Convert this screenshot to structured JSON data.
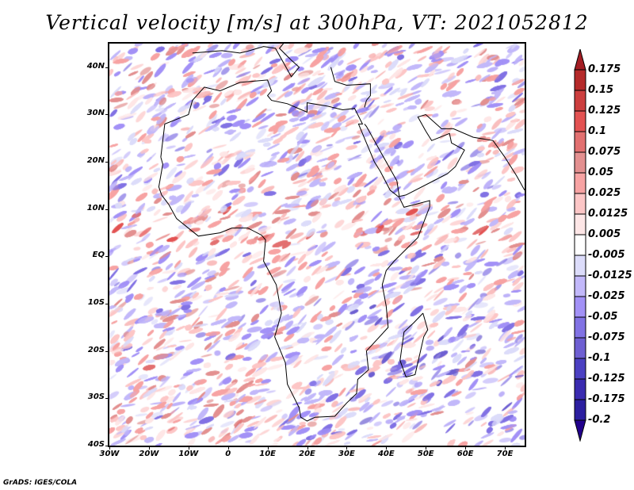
{
  "title": "Vertical velocity [m/s] at 300hPa, VT: 2021052812",
  "footer": "GrADS: IGES/COLA",
  "map": {
    "lon_range": [
      -30,
      75
    ],
    "lat_range": [
      -40,
      45
    ],
    "y_ticks": [
      {
        "value": 40,
        "label": "40N"
      },
      {
        "value": 30,
        "label": "30N"
      },
      {
        "value": 20,
        "label": "20N"
      },
      {
        "value": 10,
        "label": "10N"
      },
      {
        "value": 0,
        "label": "EQ"
      },
      {
        "value": -10,
        "label": "10S"
      },
      {
        "value": -20,
        "label": "20S"
      },
      {
        "value": -30,
        "label": "30S"
      },
      {
        "value": -40,
        "label": "40S"
      }
    ],
    "x_ticks": [
      {
        "value": -30,
        "label": "30W"
      },
      {
        "value": -20,
        "label": "20W"
      },
      {
        "value": -10,
        "label": "10W"
      },
      {
        "value": 0,
        "label": "0"
      },
      {
        "value": 10,
        "label": "10E"
      },
      {
        "value": 20,
        "label": "20E"
      },
      {
        "value": 30,
        "label": "30E"
      },
      {
        "value": 40,
        "label": "40E"
      },
      {
        "value": 50,
        "label": "50E"
      },
      {
        "value": 60,
        "label": "60E"
      },
      {
        "value": 70,
        "label": "70E"
      }
    ]
  },
  "colorbar": {
    "labels": [
      "0.175",
      "0.15",
      "0.125",
      "0.1",
      "0.075",
      "0.05",
      "0.025",
      "0.0125",
      "0.005",
      "-0.005",
      "-0.0125",
      "-0.025",
      "-0.05",
      "-0.075",
      "-0.1",
      "-0.125",
      "-0.175",
      "-0.2"
    ],
    "colors": [
      "#a41e24",
      "#b52a2a",
      "#cc3e3e",
      "#e35252",
      "#e27070",
      "#e39090",
      "#f7a3a3",
      "#fcc6c6",
      "#fde6e6",
      "#ffffff",
      "#dcdcfa",
      "#c2b8fa",
      "#a291f6",
      "#8172e4",
      "#6e5fd2",
      "#4b40c2",
      "#3a2bb0",
      "#2c1fa0",
      "#22008c"
    ]
  }
}
